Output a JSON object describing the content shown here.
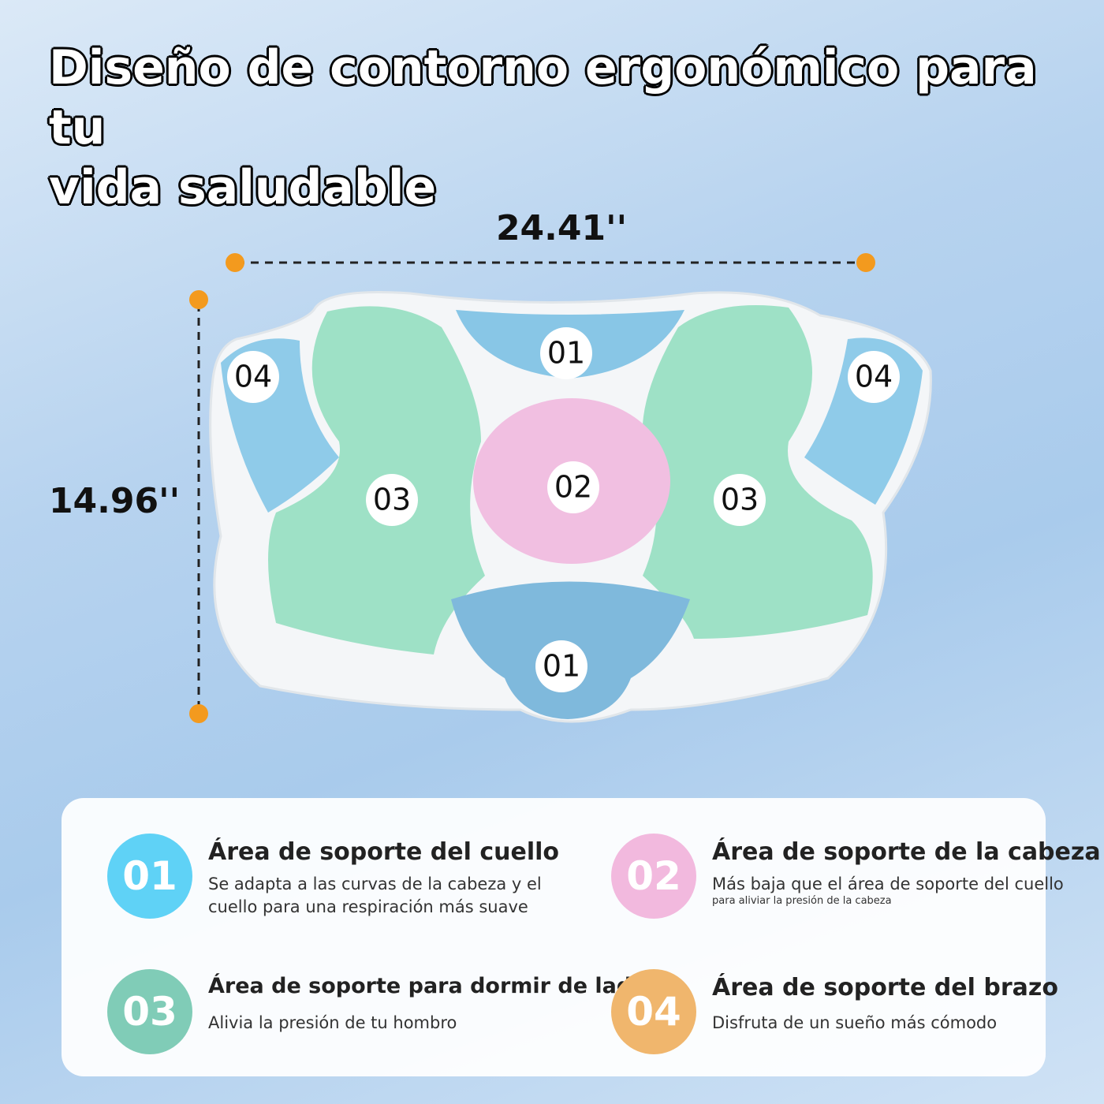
{
  "header": {
    "title_lines": [
      "Diseño de contorno ergonómico para tu",
      "vida saludable"
    ]
  },
  "dimensions": {
    "width": "24.41''",
    "height": "14.96''"
  },
  "zones": {
    "top_01": "01",
    "bottom_01": "01",
    "center_02": "02",
    "left_03": "03",
    "right_03": "03",
    "left_04": "04",
    "right_04": "04"
  },
  "features": [
    {
      "number": "01",
      "title": "Área de soporte del cuello",
      "description": [
        "Se adapta a las curvas de la cabeza y el",
        "cuello para una respiración más suave"
      ]
    },
    {
      "number": "02",
      "title": "Área de soporte de la cabeza",
      "description": [
        "Más baja que el área de soporte del cuello",
        "para aliviar la presión de la cabeza"
      ]
    },
    {
      "number": "03",
      "title": "Área de soporte para dormir de lado",
      "description": [
        "Alivia la presión de tu hombro"
      ]
    },
    {
      "number": "04",
      "title": "Área de soporte del brazo",
      "description": [
        "Disfruta de un sueño más cómodo"
      ]
    }
  ]
}
